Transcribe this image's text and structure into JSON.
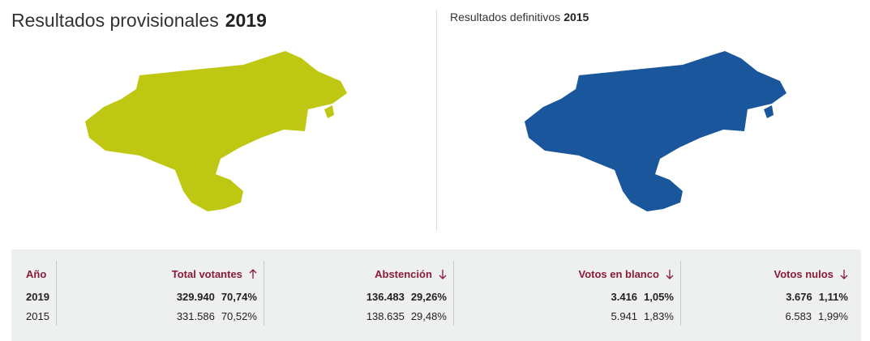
{
  "left": {
    "title": "Resultados provisionales",
    "year": "2019"
  },
  "right": {
    "title": "Resultados definitivos",
    "year": "2015"
  },
  "table": {
    "headers": [
      "Año",
      "Total votantes",
      "Abstención",
      "Votos en blanco",
      "Votos nulos"
    ],
    "rows": [
      [
        "2019",
        [
          "329.940",
          "70,74%"
        ],
        [
          "136.483",
          "29,26%"
        ],
        [
          "3.416",
          "1,05%"
        ],
        [
          "3.676",
          "1,11%"
        ]
      ],
      [
        "2015",
        [
          "331.586",
          "70,52%"
        ],
        [
          "138.635",
          "29,48%"
        ],
        [
          "5.941",
          "1,83%"
        ],
        [
          "6.583",
          "1,99%"
        ]
      ]
    ]
  }
}
